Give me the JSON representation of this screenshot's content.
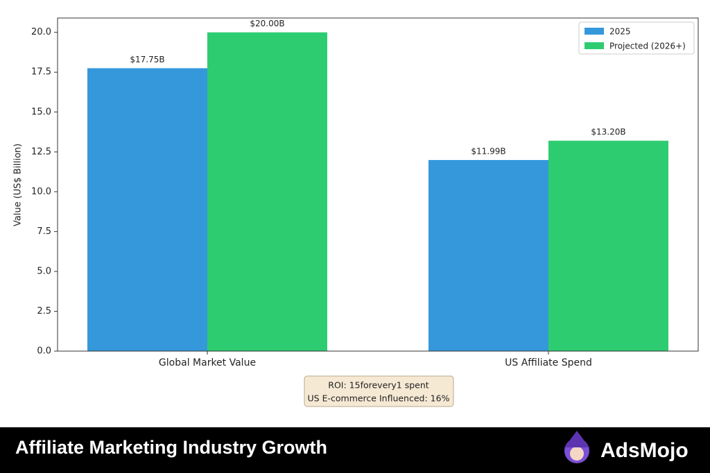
{
  "chart_data": {
    "type": "bar",
    "ylabel": "Value (US$ Billion)",
    "categories": [
      "Global Market Value",
      "US Affiliate Spend"
    ],
    "series": [
      {
        "name": "2025",
        "color": "#3498db",
        "values": [
          17.75,
          11.99
        ],
        "value_labels": [
          "$17.75B",
          "$11.99B"
        ]
      },
      {
        "name": "Projected (2026+)",
        "color": "#2ecc71",
        "values": [
          20.0,
          13.2
        ],
        "value_labels": [
          "$20.00B",
          "$13.20B"
        ]
      }
    ],
    "ylim": [
      0,
      20.9
    ],
    "yticks": [
      {
        "value": 0,
        "label": "0.0"
      },
      {
        "value": 2.5,
        "label": "2.5"
      },
      {
        "value": 5,
        "label": "5.0"
      },
      {
        "value": 7.5,
        "label": "7.5"
      },
      {
        "value": 10,
        "label": "10.0"
      },
      {
        "value": 12.5,
        "label": "12.5"
      },
      {
        "value": 15,
        "label": "15.0"
      },
      {
        "value": 17.5,
        "label": "17.5"
      },
      {
        "value": 20,
        "label": "20.0"
      }
    ],
    "legend": "upper right",
    "annotation": [
      "ROI: 15forevery1 spent",
      "US E-commerce Influenced: 16%"
    ]
  },
  "banner": {
    "title": "Affiliate Marketing Industry Growth",
    "brand": "AdsMojo"
  }
}
